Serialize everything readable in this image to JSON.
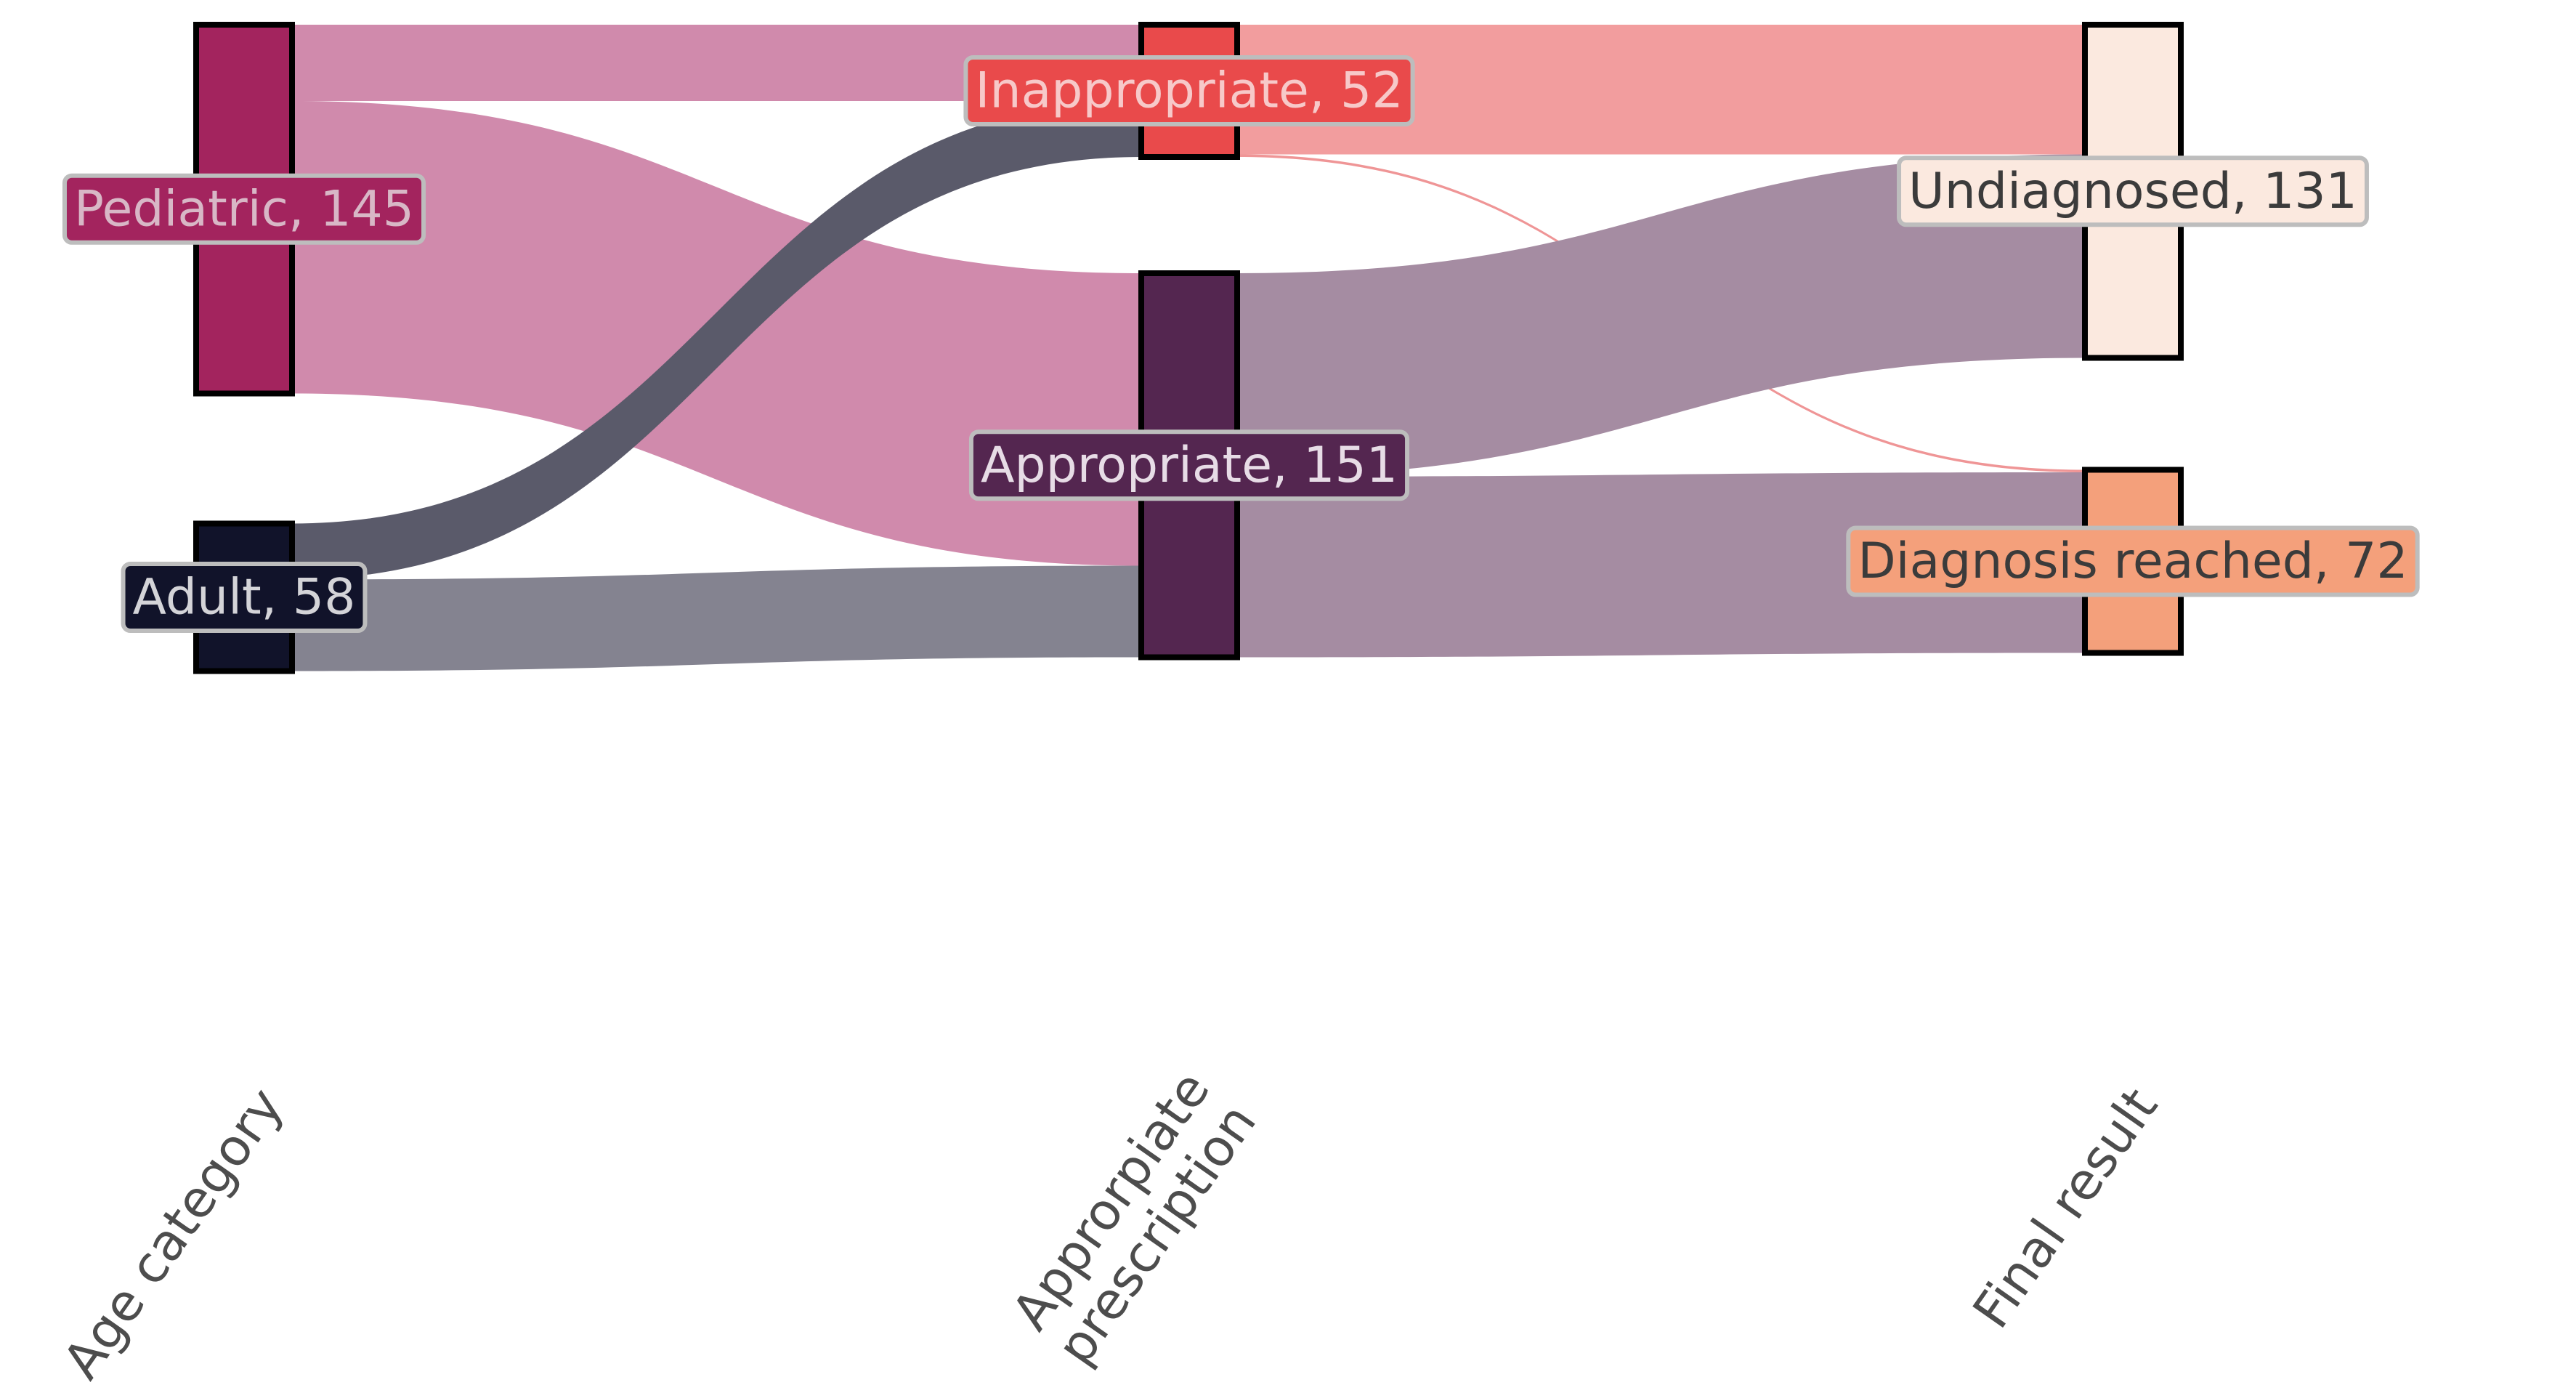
{
  "chart_data": {
    "type": "sankey",
    "columns": [
      {
        "key": "age",
        "label": [
          "Age category"
        ]
      },
      {
        "key": "rx",
        "label": [
          "Approrpiate",
          "prescription"
        ]
      },
      {
        "key": "result",
        "label": [
          "Final result"
        ]
      }
    ],
    "nodes": [
      {
        "id": "pediatric",
        "column": "age",
        "name": "Pediatric",
        "value": 145,
        "color": "#a3245e",
        "label_color": "#d8b7c6"
      },
      {
        "id": "adult",
        "column": "age",
        "name": "Adult",
        "value": 58,
        "color": "#11132a",
        "label_color": "#d4d4d8"
      },
      {
        "id": "inappropriate",
        "column": "rx",
        "name": "Inappropriate",
        "value": 52,
        "color": "#e94a4b",
        "label_color": "#f7c9c9"
      },
      {
        "id": "appropriate",
        "column": "rx",
        "name": "Appropriate",
        "value": 151,
        "color": "#542650",
        "label_color": "#e7dce6"
      },
      {
        "id": "undiagnosed",
        "column": "result",
        "name": "Undiagnosed",
        "value": 131,
        "color": "#fbe9df",
        "label_color": "#3b3b3b"
      },
      {
        "id": "diagnosis",
        "column": "result",
        "name": "Diagnosis reached",
        "value": 72,
        "color": "#f4a07b",
        "label_color": "#3b3b3b"
      }
    ],
    "links": [
      {
        "source": "pediatric",
        "target": "inappropriate",
        "value": 30,
        "color": "#d08aac"
      },
      {
        "source": "pediatric",
        "target": "appropriate",
        "value": 115,
        "color": "#d08aac"
      },
      {
        "source": "adult",
        "target": "inappropriate",
        "value": 22,
        "color": "#5a5a6a"
      },
      {
        "source": "adult",
        "target": "appropriate",
        "value": 36,
        "color": "#848390"
      },
      {
        "source": "inappropriate",
        "target": "undiagnosed",
        "value": 51,
        "color": "#f29d9e"
      },
      {
        "source": "inappropriate",
        "target": "diagnosis",
        "value": 1,
        "color": "#ef9596"
      },
      {
        "source": "appropriate",
        "target": "undiagnosed",
        "value": 80,
        "color": "#a58ca2"
      },
      {
        "source": "appropriate",
        "target": "diagnosis",
        "value": 71,
        "color": "#a58ca2"
      }
    ]
  }
}
